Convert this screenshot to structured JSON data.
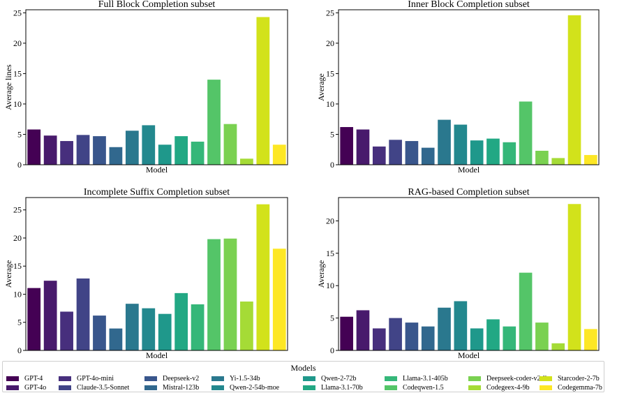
{
  "chart_data": {
    "type": "bar",
    "categories": [
      "GPT-4",
      "GPT-4o",
      "GPT-4o-mini",
      "Claude-3.5-Sonnet",
      "Deepseek-v2",
      "Mistral-123b",
      "Yi-1.5-34b",
      "Qwen-2-54b-moe",
      "Qwen-2-72b",
      "Llama-3.1-70b",
      "Llama-3.1-405b",
      "Codeqwen-1.5",
      "Deepseek-coder-v2-lite",
      "Codegeex-4-9b",
      "Starcoder-2-7b",
      "Codegemma-7b"
    ],
    "colors": [
      "#440154",
      "#481a6c",
      "#472f7d",
      "#414487",
      "#39568c",
      "#31688e",
      "#2a788e",
      "#23888e",
      "#1f988b",
      "#22a884",
      "#35b779",
      "#54c568",
      "#7ad151",
      "#a5db36",
      "#d2e21b",
      "#fde725"
    ],
    "panels": [
      {
        "title": "Full Block Completion subset",
        "xlabel": "Model",
        "ylabel": "Average lines",
        "ylim": [
          0,
          25.5
        ],
        "yticks": [
          0,
          5,
          10,
          15,
          20,
          25
        ],
        "values": [
          5.8,
          4.8,
          3.9,
          4.9,
          4.7,
          2.9,
          5.6,
          6.5,
          3.3,
          4.7,
          3.8,
          14.0,
          6.7,
          1.0,
          24.3,
          3.3
        ]
      },
      {
        "title": "Inner Block Completion subset",
        "xlabel": "Model",
        "ylabel": "Average",
        "ylim": [
          0,
          25.5
        ],
        "yticks": [
          0,
          5,
          10,
          15,
          20,
          25
        ],
        "values": [
          6.2,
          5.8,
          3.0,
          4.1,
          3.9,
          2.8,
          7.4,
          6.6,
          4.0,
          4.3,
          3.7,
          10.4,
          2.3,
          1.1,
          24.6,
          1.6
        ]
      },
      {
        "title": "Incomplete Suffix Completion subset",
        "xlabel": "Model",
        "ylabel": "Average",
        "ylim": [
          0,
          27.2
        ],
        "yticks": [
          0,
          5,
          10,
          15,
          20,
          25
        ],
        "values": [
          11.1,
          12.4,
          6.9,
          12.8,
          6.2,
          3.9,
          8.3,
          7.5,
          6.5,
          10.2,
          8.2,
          19.8,
          19.9,
          8.7,
          26.0,
          18.1
        ]
      },
      {
        "title": "RAG-based Completion subset",
        "xlabel": "Model",
        "ylabel": "Average",
        "ylim": [
          0,
          23.6
        ],
        "yticks": [
          0,
          5,
          10,
          15,
          20
        ],
        "values": [
          5.2,
          6.2,
          3.4,
          5.0,
          4.3,
          3.7,
          6.6,
          7.6,
          3.4,
          4.8,
          3.7,
          12.0,
          4.3,
          1.1,
          22.6,
          3.3
        ]
      }
    ],
    "legend": {
      "title": "Models",
      "placement": "bottom"
    }
  }
}
